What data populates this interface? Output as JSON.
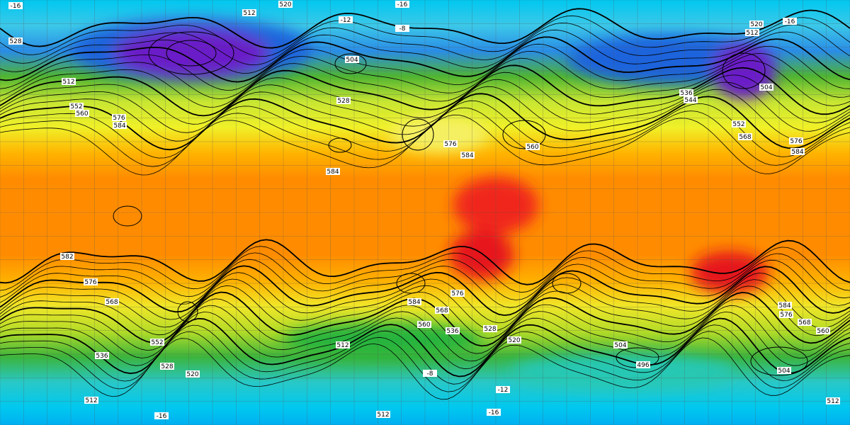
{
  "labels": [
    520,
    512,
    -16,
    -16,
    -12,
    -8,
    528,
    512,
    504,
    528,
    552,
    560,
    576,
    584,
    584,
    576,
    584,
    560,
    520,
    -16,
    512,
    504,
    536,
    544,
    552,
    568,
    576,
    584,
    582,
    576,
    568,
    552,
    536,
    528,
    520,
    512,
    512,
    504,
    496,
    504,
    584,
    576,
    568,
    560,
    512,
    -16,
    -16,
    -12,
    -8,
    576,
    584,
    568,
    560,
    536,
    528,
    520,
    512
  ]
}
